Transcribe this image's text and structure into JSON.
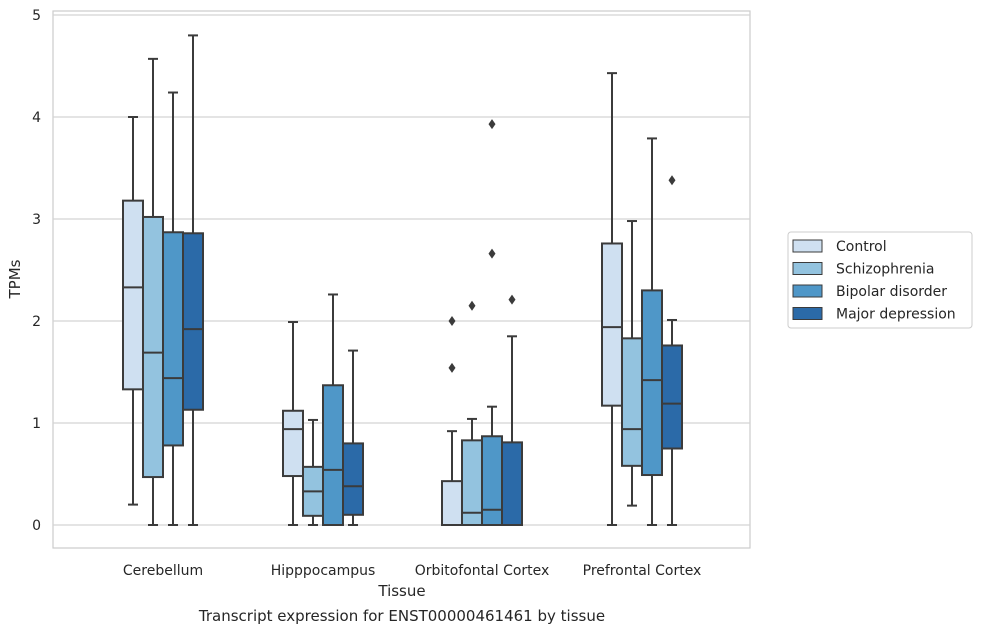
{
  "chart_data": {
    "type": "boxplot",
    "xlabel": "Tissue",
    "ylabel": "TPMs",
    "caption": "Transcript expression for ENST00000461461 by tissue",
    "ylim": [
      -0.23,
      5.05
    ],
    "yticks": [
      0,
      1,
      2,
      3,
      4,
      5
    ],
    "grid": "horizontal",
    "legend_position": "right",
    "categories": [
      "Cerebellum",
      "Hipppocampus",
      "Orbitofontal Cortex",
      "Prefrontal Cortex"
    ],
    "series": [
      {
        "name": "Control",
        "color": "#cfe0f1",
        "boxes": [
          {
            "whislo": 0.2,
            "q1": 1.33,
            "med": 2.33,
            "q3": 3.18,
            "whishi": 4.0,
            "fliers": []
          },
          {
            "whislo": 0.0,
            "q1": 0.48,
            "med": 0.94,
            "q3": 1.12,
            "whishi": 1.99,
            "fliers": []
          },
          {
            "whislo": 0.0,
            "q1": 0.0,
            "med": 0.0,
            "q3": 0.43,
            "whishi": 0.92,
            "fliers": [
              1.54,
              2.0
            ]
          },
          {
            "whislo": 0.0,
            "q1": 1.17,
            "med": 1.94,
            "q3": 2.76,
            "whishi": 4.43,
            "fliers": []
          }
        ]
      },
      {
        "name": "Schizophrenia",
        "color": "#93c3df",
        "boxes": [
          {
            "whislo": 0.0,
            "q1": 0.47,
            "med": 1.69,
            "q3": 3.02,
            "whishi": 4.57,
            "fliers": []
          },
          {
            "whislo": 0.0,
            "q1": 0.09,
            "med": 0.33,
            "q3": 0.57,
            "whishi": 1.03,
            "fliers": []
          },
          {
            "whislo": 0.0,
            "q1": 0.0,
            "med": 0.12,
            "q3": 0.83,
            "whishi": 1.04,
            "fliers": [
              2.15
            ]
          },
          {
            "whislo": 0.19,
            "q1": 0.58,
            "med": 0.94,
            "q3": 1.83,
            "whishi": 2.98,
            "fliers": []
          }
        ]
      },
      {
        "name": "Bipolar disorder",
        "color": "#4f97c8",
        "boxes": [
          {
            "whislo": 0.0,
            "q1": 0.78,
            "med": 1.44,
            "q3": 2.87,
            "whishi": 4.24,
            "fliers": []
          },
          {
            "whislo": 0.0,
            "q1": 0.0,
            "med": 0.54,
            "q3": 1.37,
            "whishi": 2.26,
            "fliers": []
          },
          {
            "whislo": 0.0,
            "q1": 0.0,
            "med": 0.15,
            "q3": 0.87,
            "whishi": 1.16,
            "fliers": [
              2.66,
              3.93
            ]
          },
          {
            "whislo": 0.0,
            "q1": 0.49,
            "med": 1.42,
            "q3": 2.3,
            "whishi": 3.79,
            "fliers": []
          }
        ]
      },
      {
        "name": "Major depression",
        "color": "#2b6aa8",
        "boxes": [
          {
            "whislo": 0.0,
            "q1": 1.13,
            "med": 1.92,
            "q3": 2.86,
            "whishi": 4.8,
            "fliers": []
          },
          {
            "whislo": 0.0,
            "q1": 0.1,
            "med": 0.38,
            "q3": 0.8,
            "whishi": 1.71,
            "fliers": []
          },
          {
            "whislo": 0.0,
            "q1": 0.0,
            "med": 0.0,
            "q3": 0.81,
            "whishi": 1.85,
            "fliers": [
              2.21
            ]
          },
          {
            "whislo": 0.0,
            "q1": 0.75,
            "med": 1.19,
            "q3": 1.76,
            "whishi": 2.01,
            "fliers": [
              3.38
            ]
          }
        ]
      }
    ]
  }
}
